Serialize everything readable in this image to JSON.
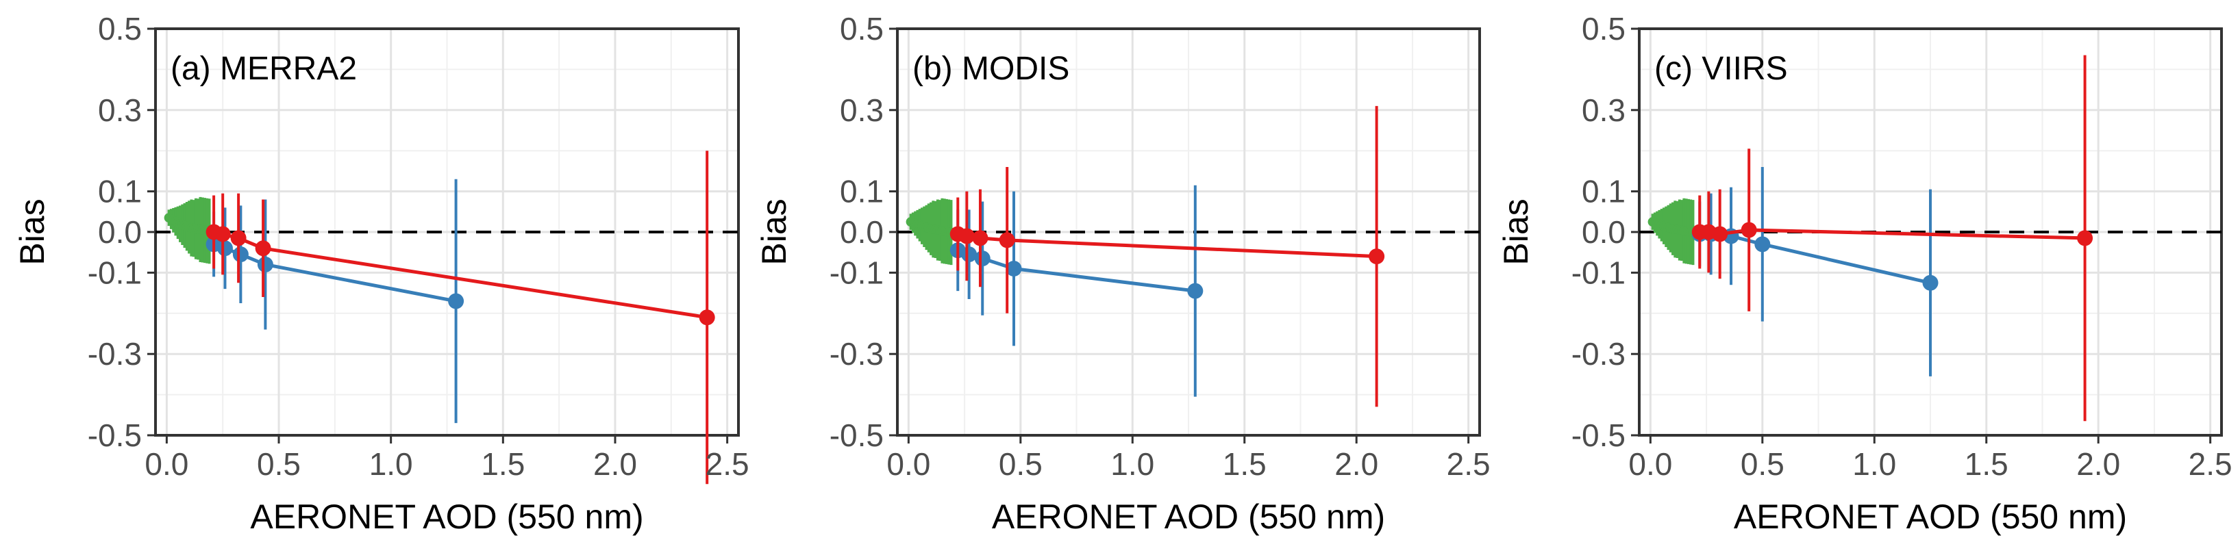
{
  "chart_data": [
    {
      "type": "line",
      "panel_label": "(a) MERRA2",
      "xlabel": "AERONET AOD (550 nm)",
      "ylabel": "Bias",
      "xlim": [
        -0.05,
        2.55
      ],
      "ylim": [
        -0.5,
        0.5
      ],
      "xticks": [
        0.0,
        0.5,
        1.0,
        1.5,
        2.0,
        2.5
      ],
      "xtick_labels": [
        "0.0",
        "0.5",
        "1.0",
        "1.5",
        "2.0",
        "2.5"
      ],
      "yticks": [
        0.5,
        0.3,
        0.1,
        0.0,
        -0.1,
        -0.3,
        -0.5
      ],
      "ytick_labels": [
        "0.5",
        "0.3",
        "0.1",
        "0.0",
        "-0.1",
        "-0.3",
        "-0.5"
      ],
      "reference_line": 0,
      "grid": true,
      "series": [
        {
          "name": "green",
          "color": "#4daf4a",
          "marker_size": "small",
          "x": [
            0.01,
            0.02,
            0.03,
            0.04,
            0.05,
            0.06,
            0.07,
            0.08,
            0.09,
            0.1,
            0.11,
            0.12,
            0.13,
            0.14,
            0.15,
            0.16,
            0.17,
            0.18,
            0.19
          ],
          "y": [
            0.035,
            0.032,
            0.029,
            0.026,
            0.023,
            0.02,
            0.018,
            0.016,
            0.014,
            0.012,
            0.01,
            0.009,
            0.008,
            0.007,
            0.006,
            0.005,
            0.004,
            0.003,
            0.002
          ],
          "err": [
            0.02,
            0.025,
            0.03,
            0.035,
            0.04,
            0.045,
            0.05,
            0.055,
            0.06,
            0.065,
            0.07,
            0.07,
            0.075,
            0.075,
            0.08,
            0.08,
            0.08,
            0.08,
            0.08
          ]
        },
        {
          "name": "blue",
          "color": "#377eb8",
          "marker_size": "large",
          "x": [
            0.21,
            0.26,
            0.33,
            0.44,
            1.29
          ],
          "y": [
            -0.03,
            -0.04,
            -0.055,
            -0.08,
            -0.17
          ],
          "err": [
            0.08,
            0.1,
            0.12,
            0.16,
            0.3
          ]
        },
        {
          "name": "red",
          "color": "#e41a1c",
          "marker_size": "large",
          "x": [
            0.21,
            0.25,
            0.32,
            0.43,
            2.41
          ],
          "y": [
            0.0,
            -0.005,
            -0.015,
            -0.04,
            -0.21
          ],
          "err": [
            0.09,
            0.1,
            0.11,
            0.12,
            0.41
          ]
        }
      ]
    },
    {
      "type": "line",
      "panel_label": "(b) MODIS",
      "xlabel": "AERONET AOD (550 nm)",
      "ylabel": "Bias",
      "xlim": [
        -0.05,
        2.55
      ],
      "ylim": [
        -0.5,
        0.5
      ],
      "xticks": [
        0.0,
        0.5,
        1.0,
        1.5,
        2.0,
        2.5
      ],
      "xtick_labels": [
        "0.0",
        "0.5",
        "1.0",
        "1.5",
        "2.0",
        "2.5"
      ],
      "yticks": [
        0.5,
        0.3,
        0.1,
        0.0,
        -0.1,
        -0.3,
        -0.5
      ],
      "ytick_labels": [
        "0.5",
        "0.3",
        "0.1",
        "0.0",
        "-0.1",
        "-0.3",
        "-0.5"
      ],
      "reference_line": 0,
      "grid": true,
      "series": [
        {
          "name": "green",
          "color": "#4daf4a",
          "marker_size": "small",
          "x": [
            0.01,
            0.02,
            0.03,
            0.04,
            0.05,
            0.06,
            0.07,
            0.08,
            0.09,
            0.1,
            0.11,
            0.12,
            0.13,
            0.14,
            0.15,
            0.16,
            0.17,
            0.18,
            0.19
          ],
          "y": [
            0.025,
            0.023,
            0.021,
            0.019,
            0.017,
            0.015,
            0.013,
            0.011,
            0.01,
            0.008,
            0.007,
            0.006,
            0.005,
            0.004,
            0.003,
            0.002,
            0.001,
            0.0,
            -0.001
          ],
          "err": [
            0.02,
            0.025,
            0.03,
            0.035,
            0.04,
            0.045,
            0.05,
            0.055,
            0.06,
            0.065,
            0.07,
            0.07,
            0.075,
            0.075,
            0.08,
            0.08,
            0.08,
            0.08,
            0.08
          ]
        },
        {
          "name": "blue",
          "color": "#377eb8",
          "marker_size": "large",
          "x": [
            0.22,
            0.27,
            0.33,
            0.47,
            1.28
          ],
          "y": [
            -0.045,
            -0.055,
            -0.065,
            -0.09,
            -0.145
          ],
          "err": [
            0.1,
            0.11,
            0.14,
            0.19,
            0.26
          ]
        },
        {
          "name": "red",
          "color": "#e41a1c",
          "marker_size": "large",
          "x": [
            0.22,
            0.26,
            0.32,
            0.44,
            2.09
          ],
          "y": [
            -0.005,
            -0.01,
            -0.015,
            -0.02,
            -0.06
          ],
          "err": [
            0.09,
            0.11,
            0.12,
            0.18,
            0.37
          ]
        }
      ]
    },
    {
      "type": "line",
      "panel_label": "(c) VIIRS",
      "xlabel": "AERONET AOD (550 nm)",
      "ylabel": "Bias",
      "xlim": [
        -0.05,
        2.55
      ],
      "ylim": [
        -0.5,
        0.5
      ],
      "xticks": [
        0.0,
        0.5,
        1.0,
        1.5,
        2.0,
        2.5
      ],
      "xtick_labels": [
        "0.0",
        "0.5",
        "1.0",
        "1.5",
        "2.0",
        "2.5"
      ],
      "yticks": [
        0.5,
        0.3,
        0.1,
        0.0,
        -0.1,
        -0.3,
        -0.5
      ],
      "ytick_labels": [
        "0.5",
        "0.3",
        "0.1",
        "0.0",
        "-0.1",
        "-0.3",
        "-0.5"
      ],
      "reference_line": 0,
      "grid": true,
      "series": [
        {
          "name": "green",
          "color": "#4daf4a",
          "marker_size": "small",
          "x": [
            0.01,
            0.02,
            0.03,
            0.04,
            0.05,
            0.06,
            0.07,
            0.08,
            0.09,
            0.1,
            0.11,
            0.12,
            0.13,
            0.14,
            0.15,
            0.16,
            0.17,
            0.18,
            0.19
          ],
          "y": [
            0.025,
            0.023,
            0.021,
            0.019,
            0.017,
            0.015,
            0.013,
            0.011,
            0.01,
            0.008,
            0.007,
            0.006,
            0.005,
            0.004,
            0.003,
            0.002,
            0.001,
            0.0,
            -0.001
          ],
          "err": [
            0.02,
            0.025,
            0.03,
            0.035,
            0.04,
            0.045,
            0.05,
            0.055,
            0.06,
            0.065,
            0.07,
            0.07,
            0.075,
            0.075,
            0.08,
            0.08,
            0.08,
            0.08,
            0.08
          ]
        },
        {
          "name": "blue",
          "color": "#377eb8",
          "marker_size": "large",
          "x": [
            0.22,
            0.27,
            0.36,
            0.5,
            1.25
          ],
          "y": [
            -0.005,
            -0.005,
            -0.01,
            -0.03,
            -0.125
          ],
          "err": [
            0.08,
            0.1,
            0.12,
            0.19,
            0.23
          ]
        },
        {
          "name": "red",
          "color": "#e41a1c",
          "marker_size": "large",
          "x": [
            0.22,
            0.26,
            0.31,
            0.44,
            1.94
          ],
          "y": [
            0.0,
            0.0,
            -0.005,
            0.005,
            -0.015
          ],
          "err": [
            0.09,
            0.1,
            0.11,
            0.2,
            0.45
          ]
        }
      ]
    }
  ]
}
